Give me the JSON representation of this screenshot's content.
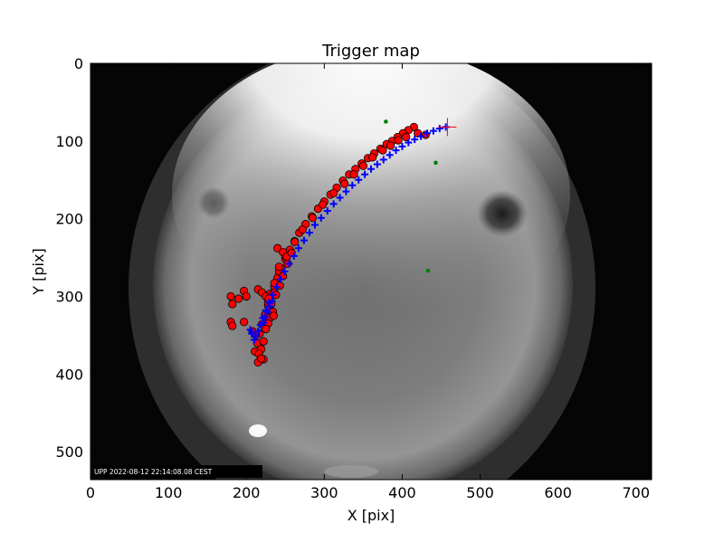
{
  "chart_data": {
    "type": "scatter",
    "title": "Trigger map",
    "xlabel": "X [pix]",
    "ylabel": "Y [pix]",
    "xlim": [
      0,
      720
    ],
    "ylim": [
      536,
      0
    ],
    "x_ticks": [
      0,
      100,
      200,
      300,
      400,
      500,
      600,
      700
    ],
    "y_ticks": [
      0,
      100,
      200,
      300,
      400,
      500
    ],
    "x_tick_labels": [
      "0",
      "100",
      "200",
      "300",
      "400",
      "500",
      "600",
      "700"
    ],
    "y_tick_labels": [
      "0",
      "100",
      "200",
      "300",
      "400",
      "500"
    ],
    "timestamp": "UPP 2022-08-12 22:14:08.08 CEST",
    "background": "all-sky fisheye camera frame (grayscale)",
    "colors": {
      "detections": "#ff0000",
      "track": "#0000ff",
      "stars": "#008000",
      "start_marker": "#ff0000"
    },
    "series": [
      {
        "marker": "circle",
        "color": "#ff0000",
        "points": [
          [
            415,
            82
          ],
          [
            408,
            86
          ],
          [
            401,
            90
          ],
          [
            394,
            95
          ],
          [
            387,
            100
          ],
          [
            380,
            104
          ],
          [
            372,
            110
          ],
          [
            364,
            116
          ],
          [
            356,
            122
          ],
          [
            348,
            129
          ],
          [
            340,
            136
          ],
          [
            332,
            143
          ],
          [
            324,
            151
          ],
          [
            316,
            160
          ],
          [
            308,
            169
          ],
          [
            300,
            178
          ],
          [
            292,
            187
          ],
          [
            284,
            197
          ],
          [
            276,
            207
          ],
          [
            268,
            218
          ],
          [
            262,
            229
          ],
          [
            256,
            240
          ],
          [
            250,
            252
          ],
          [
            245,
            264
          ],
          [
            240,
            276
          ],
          [
            236,
            288
          ],
          [
            232,
            300
          ],
          [
            228,
            312
          ],
          [
            224,
            324
          ],
          [
            220,
            336
          ],
          [
            217,
            348
          ],
          [
            214,
            360
          ],
          [
            211,
            371
          ],
          [
            430,
            92
          ],
          [
            420,
            90
          ],
          [
            405,
            95
          ],
          [
            395,
            99
          ],
          [
            385,
            106
          ],
          [
            375,
            112
          ],
          [
            362,
            121
          ],
          [
            350,
            132
          ],
          [
            338,
            143
          ],
          [
            326,
            155
          ],
          [
            312,
            167
          ],
          [
            298,
            182
          ],
          [
            285,
            199
          ],
          [
            272,
            214
          ],
          [
            262,
            230
          ],
          [
            250,
            248
          ],
          [
            242,
            268
          ],
          [
            236,
            283
          ],
          [
            230,
            297
          ],
          [
            180,
            300
          ],
          [
            182,
            310
          ],
          [
            190,
            303
          ],
          [
            197,
            293
          ],
          [
            200,
            300
          ],
          [
            215,
            291
          ],
          [
            220,
            295
          ],
          [
            225,
            300
          ],
          [
            228,
            308
          ],
          [
            230,
            328
          ],
          [
            228,
            335
          ],
          [
            225,
            342
          ],
          [
            222,
            358
          ],
          [
            219,
            368
          ],
          [
            216,
            374
          ],
          [
            180,
            333
          ],
          [
            182,
            338
          ],
          [
            197,
            333
          ],
          [
            208,
            345
          ],
          [
            212,
            350
          ],
          [
            240,
            238
          ],
          [
            247,
            243
          ],
          [
            252,
            249
          ],
          [
            258,
            244
          ],
          [
            253,
            258
          ],
          [
            242,
            262
          ],
          [
            247,
            274
          ],
          [
            243,
            286
          ],
          [
            236,
            295
          ],
          [
            229,
            303
          ],
          [
            232,
            310
          ],
          [
            238,
            298
          ],
          [
            234,
            320
          ],
          [
            235,
            325
          ],
          [
            222,
            381
          ],
          [
            215,
            385
          ],
          [
            219,
            380
          ]
        ]
      },
      {
        "marker": "plus",
        "color": "#0000ff",
        "points": [
          [
            456,
            82
          ],
          [
            448,
            84
          ],
          [
            440,
            87
          ],
          [
            432,
            90
          ],
          [
            424,
            94
          ],
          [
            416,
            98
          ],
          [
            408,
            102
          ],
          [
            400,
            107
          ],
          [
            392,
            112
          ],
          [
            384,
            118
          ],
          [
            376,
            124
          ],
          [
            368,
            130
          ],
          [
            360,
            136
          ],
          [
            352,
            143
          ],
          [
            344,
            150
          ],
          [
            336,
            157
          ],
          [
            328,
            165
          ],
          [
            320,
            173
          ],
          [
            312,
            181
          ],
          [
            304,
            190
          ],
          [
            296,
            199
          ],
          [
            288,
            208
          ],
          [
            281,
            218
          ],
          [
            274,
            228
          ],
          [
            267,
            238
          ],
          [
            261,
            248
          ],
          [
            255,
            258
          ],
          [
            249,
            268
          ],
          [
            244,
            278
          ],
          [
            239,
            288
          ],
          [
            234,
            298
          ],
          [
            229,
            308
          ],
          [
            225,
            318
          ],
          [
            221,
            328
          ],
          [
            218,
            337
          ],
          [
            215,
            345
          ],
          [
            212,
            351
          ],
          [
            210,
            356
          ],
          [
            207,
            348
          ],
          [
            205,
            343
          ],
          [
            222,
            334
          ],
          [
            224,
            327
          ],
          [
            227,
            320
          ],
          [
            230,
            313
          ],
          [
            233,
            306
          ]
        ]
      },
      {
        "marker": "dot",
        "color": "#008000",
        "points": [
          [
            379,
            75
          ],
          [
            443,
            128
          ],
          [
            433,
            267
          ]
        ]
      },
      {
        "marker": "cross",
        "color": "#ff0000",
        "points": [
          [
            458,
            82
          ]
        ]
      }
    ]
  }
}
